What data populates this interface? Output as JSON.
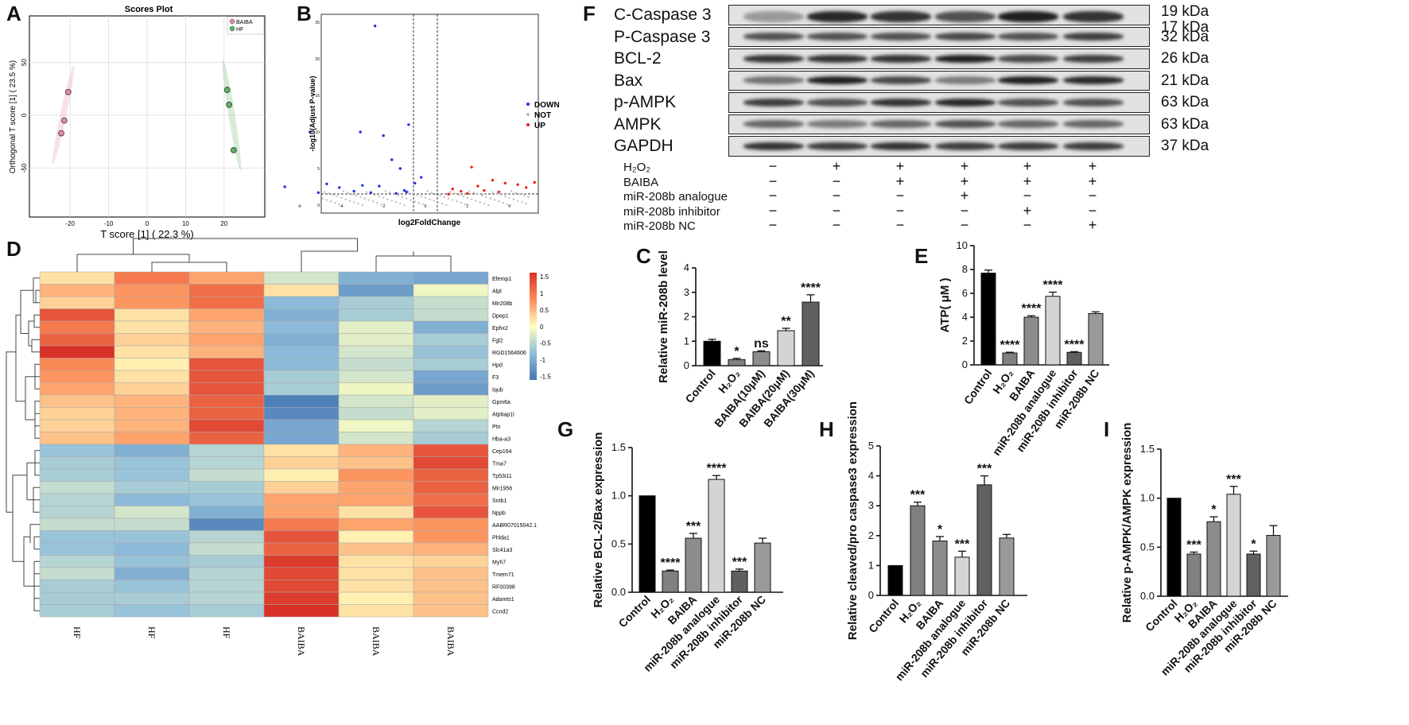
{
  "panel_letters": {
    "A": "A",
    "B": "B",
    "C": "C",
    "D": "D",
    "E": "E",
    "F": "F",
    "G": "G",
    "H": "H",
    "I": "I"
  },
  "panelA": {
    "title": "Scores Plot",
    "xlabel": "T score [1] ( 22.3 %)",
    "ylabel": "Orthogonal T score [1] ( 23.5 %)",
    "xticks": [
      "-20",
      "-10",
      "0",
      "10",
      "20"
    ],
    "yticks": [
      "50",
      "0",
      "-50"
    ],
    "legend": [
      "BAIBA",
      "HF"
    ],
    "colors": {
      "BAIBA": "#e58aa5",
      "HF": "#5fb45f"
    }
  },
  "panelB": {
    "xlabel": "log2FoldChange",
    "ylabel": "-log10(Adjust P-value)",
    "legend": [
      "DOWN",
      "NOT",
      "UP"
    ],
    "colors": {
      "DOWN": "#2233dd",
      "NOT": "#bbbbbb",
      "UP": "#ee2222"
    }
  },
  "panelF": {
    "bands": [
      {
        "name": "C-Caspase 3",
        "kda": "19  kDa",
        "kda2": "17  kDa"
      },
      {
        "name": "P-Caspase 3",
        "kda": "32 kDa"
      },
      {
        "name": "BCL-2",
        "kda": "26 kDa"
      },
      {
        "name": "Bax",
        "kda": "21 kDa"
      },
      {
        "name": "p-AMPK",
        "kda": "63 kDa"
      },
      {
        "name": "AMPK",
        "kda": "63 kDa"
      },
      {
        "name": "GAPDH",
        "kda": "37 kDa"
      }
    ],
    "treatments": [
      {
        "label": "H₂O₂",
        "signs": [
          "−",
          "+",
          "+",
          "+",
          "+",
          "+"
        ]
      },
      {
        "label": "BAIBA",
        "signs": [
          "−",
          "−",
          "+",
          "+",
          "+",
          "+"
        ]
      },
      {
        "label": "miR-208b  analogue",
        "signs": [
          "−",
          "−",
          "−",
          "+",
          "−",
          "−"
        ]
      },
      {
        "label": "miR-208b  inhibitor",
        "signs": [
          "−",
          "−",
          "−",
          "−",
          "+",
          "−"
        ]
      },
      {
        "label": "miR-208b  NC",
        "signs": [
          "−",
          "−",
          "−",
          "−",
          "−",
          "+"
        ]
      }
    ]
  },
  "panelD": {
    "genes": [
      "Efemp1",
      "Alpl",
      "Mir208b",
      "Dpep1",
      "Ephx2",
      "Fgl2",
      "RGD1564606",
      "Hpd",
      "F3",
      "Iqub",
      "Gpm6a",
      "Atp6ap1l",
      "Ptn",
      "Hba-a3",
      "Cep164",
      "Tma7",
      "Tp53i11",
      "Mir1956",
      "Sntb1",
      "Nppb",
      "AABR07015042.1",
      "Phlda1",
      "Slc41a3",
      "Myh7",
      "Tmem71",
      "RF00398",
      "Adamts1",
      "Ccnd2"
    ],
    "columns": [
      "HF",
      "HF",
      "HF",
      "BAIBA",
      "BAIBA",
      "BAIBA"
    ],
    "scale_ticks": [
      "1.5",
      "1",
      "0.5",
      "0",
      "-0.5",
      "-1",
      "-1.5"
    ]
  },
  "chart_data": [
    {
      "id": "C",
      "type": "bar",
      "categories": [
        "Control",
        "H₂O₂",
        "BAIBA(10μM)",
        "BAIBA(20μM)",
        "BAIBA(30μM)"
      ],
      "values": [
        1.0,
        0.25,
        0.57,
        1.43,
        2.6
      ],
      "errors": [
        0.08,
        0.05,
        0.04,
        0.1,
        0.3
      ],
      "significance": [
        "",
        "*",
        "ns",
        "**",
        "****"
      ],
      "colors": [
        "#000000",
        "#808080",
        "#8c8c8c",
        "#d4d4d4",
        "#606060"
      ],
      "ylabel": "Relative miR-208b level",
      "ylim": [
        0,
        4
      ],
      "yticks": [
        "0",
        "1",
        "2",
        "3",
        "4"
      ]
    },
    {
      "id": "E",
      "type": "bar",
      "categories": [
        "Control",
        "H₂O₂",
        "BAIBA",
        "miR-208b analogue",
        "miR-208b inhibitor",
        "miR-208b  NC"
      ],
      "values": [
        7.7,
        1.0,
        4.0,
        5.75,
        1.05,
        4.3
      ],
      "errors": [
        0.25,
        0.06,
        0.12,
        0.35,
        0.06,
        0.15
      ],
      "significance": [
        "",
        "****",
        "****",
        "****",
        "****",
        ""
      ],
      "colors": [
        "#000000",
        "#808080",
        "#8c8c8c",
        "#d4d4d4",
        "#606060",
        "#9a9a9a"
      ],
      "ylabel": "ATP( μM )",
      "ylim": [
        0,
        10
      ],
      "yticks": [
        "0",
        "2",
        "4",
        "6",
        "8",
        "10"
      ]
    },
    {
      "id": "G",
      "type": "bar",
      "categories": [
        "Control",
        "H₂O₂",
        "BAIBA",
        "miR-208b analogue",
        "miR-208b inhibitor",
        "miR-208b NC"
      ],
      "values": [
        1.0,
        0.22,
        0.56,
        1.17,
        0.22,
        0.51
      ],
      "errors": [
        0,
        0.01,
        0.05,
        0.04,
        0.02,
        0.05
      ],
      "significance": [
        "",
        "****",
        "***",
        "****",
        "***",
        ""
      ],
      "colors": [
        "#000000",
        "#808080",
        "#8c8c8c",
        "#d4d4d4",
        "#606060",
        "#9a9a9a"
      ],
      "ylabel": "Relative BCL-2/Bax expression",
      "ylim": [
        0,
        1.5
      ],
      "yticks": [
        "0.0",
        "0.5",
        "1.0",
        "1.5"
      ]
    },
    {
      "id": "H",
      "type": "bar",
      "categories": [
        "Control",
        "H₂O₂",
        "BAIBA",
        "miR-208b  analogue",
        "miR-208b  inhibitor",
        "miR-208b  NC"
      ],
      "values": [
        1.0,
        3.0,
        1.82,
        1.28,
        3.7,
        1.92
      ],
      "errors": [
        0,
        0.12,
        0.15,
        0.2,
        0.3,
        0.12
      ],
      "significance": [
        "",
        "***",
        "*",
        "***",
        "***",
        ""
      ],
      "colors": [
        "#000000",
        "#808080",
        "#8c8c8c",
        "#d4d4d4",
        "#606060",
        "#9a9a9a"
      ],
      "ylabel": "Relative cleaved/pro caspase3 expression",
      "ylim": [
        0,
        5
      ],
      "yticks": [
        "0",
        "1",
        "2",
        "3",
        "4",
        "5"
      ]
    },
    {
      "id": "I",
      "type": "bar",
      "categories": [
        "Control",
        "H₂O₂",
        "BAIBA",
        "miR-208b analogue",
        "miR-208b inhibitor",
        "miR-208b NC"
      ],
      "values": [
        1.0,
        0.43,
        0.76,
        1.04,
        0.43,
        0.62
      ],
      "errors": [
        0,
        0.02,
        0.05,
        0.08,
        0.03,
        0.1
      ],
      "significance": [
        "",
        "***",
        "*",
        "***",
        "*",
        ""
      ],
      "colors": [
        "#000000",
        "#808080",
        "#8c8c8c",
        "#d4d4d4",
        "#606060",
        "#9a9a9a"
      ],
      "ylabel": "Relative p-AMPK/AMPK expression",
      "ylim": [
        0,
        1.5
      ],
      "yticks": [
        "0.0",
        "0.5",
        "1.0",
        "1.5"
      ]
    }
  ]
}
